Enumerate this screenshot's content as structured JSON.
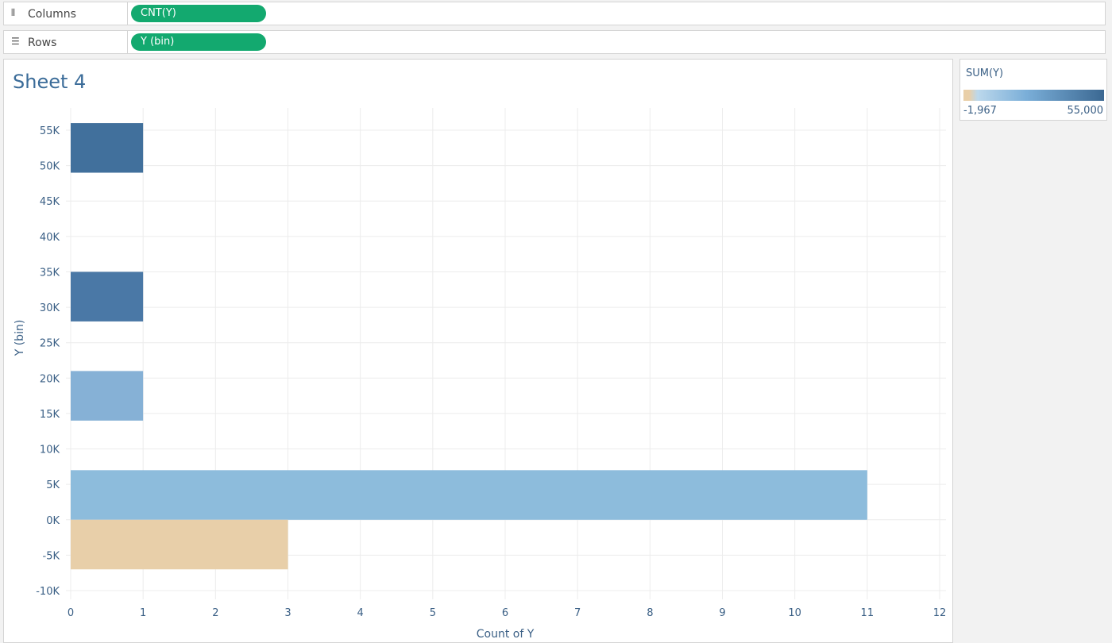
{
  "shelves": {
    "columns": {
      "icon": "columns-icon",
      "label": "Columns",
      "pill": "CNT(Y)"
    },
    "rows": {
      "icon": "rows-icon",
      "label": "Rows",
      "pill": "Y (bin)"
    },
    "pill_color": "#13a96f"
  },
  "sheet": {
    "title": "Sheet 4"
  },
  "legend": {
    "title": "SUM(Y)",
    "min_label": "-1,967",
    "max_label": "55,000",
    "ramp_colors": [
      "#e9cfa8",
      "#bcd8ec",
      "#7aaed8",
      "#3b6892"
    ]
  },
  "chart_data": {
    "type": "bar",
    "orientation": "horizontal",
    "xlabel": "Count of Y",
    "ylabel": "Y (bin)",
    "x_range": [
      0,
      12
    ],
    "x_ticks": [
      0,
      1,
      2,
      3,
      4,
      5,
      6,
      7,
      8,
      9,
      10,
      11,
      12
    ],
    "y_range": [
      -10000,
      55000
    ],
    "y_ticks": [
      {
        "value": 55000,
        "label": "55K"
      },
      {
        "value": 50000,
        "label": "50K"
      },
      {
        "value": 45000,
        "label": "45K"
      },
      {
        "value": 40000,
        "label": "40K"
      },
      {
        "value": 35000,
        "label": "35K"
      },
      {
        "value": 30000,
        "label": "30K"
      },
      {
        "value": 25000,
        "label": "25K"
      },
      {
        "value": 20000,
        "label": "20K"
      },
      {
        "value": 15000,
        "label": "15K"
      },
      {
        "value": 10000,
        "label": "10K"
      },
      {
        "value": 5000,
        "label": "5K"
      },
      {
        "value": 0,
        "label": "0K"
      },
      {
        "value": -5000,
        "label": "-5K"
      },
      {
        "value": -10000,
        "label": "-10K"
      }
    ],
    "bin_size": 7000,
    "bins": [
      {
        "bin_start": 49000,
        "count": 1,
        "color": "#41709c"
      },
      {
        "bin_start": 28000,
        "count": 1,
        "color": "#4a78a6"
      },
      {
        "bin_start": 14000,
        "count": 1,
        "color": "#86b1d6"
      },
      {
        "bin_start": 0,
        "count": 11,
        "color": "#8dbcdc"
      },
      {
        "bin_start": -7000,
        "count": 3,
        "color": "#e8cfa9"
      }
    ],
    "grid": true,
    "legend_position": "right"
  }
}
